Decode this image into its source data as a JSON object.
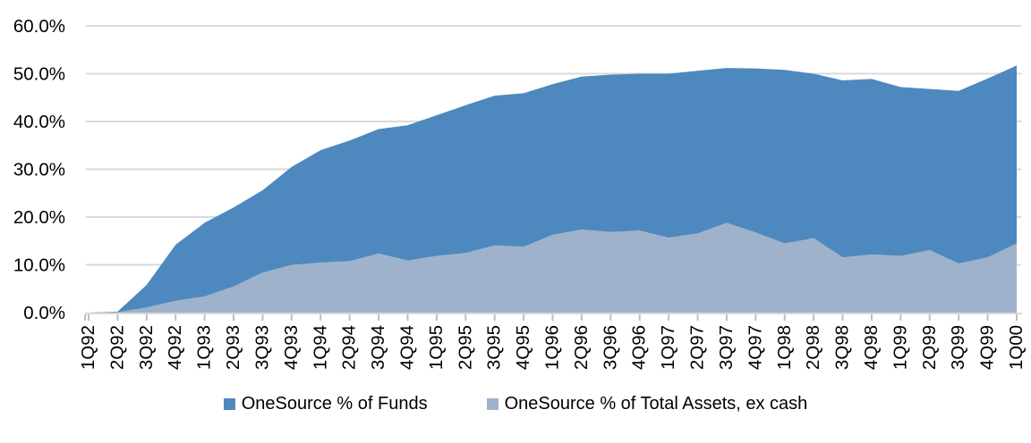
{
  "chart_data": {
    "type": "area",
    "title": "",
    "xlabel": "",
    "ylabel": "",
    "mode": "overlapping",
    "grid": true,
    "legend_position": "bottom",
    "ylim": [
      0,
      60
    ],
    "ytick_labels": [
      "0.0%",
      "10.0%",
      "20.0%",
      "30.0%",
      "40.0%",
      "50.0%",
      "60.0%"
    ],
    "categories": [
      "1Q92",
      "2Q92",
      "3Q92",
      "4Q92",
      "1Q93",
      "2Q93",
      "3Q93",
      "4Q93",
      "1Q94",
      "2Q94",
      "3Q94",
      "4Q94",
      "1Q95",
      "2Q95",
      "3Q95",
      "4Q95",
      "1Q96",
      "2Q96",
      "3Q96",
      "4Q96",
      "1Q97",
      "2Q97",
      "3Q97",
      "4Q97",
      "1Q98",
      "2Q98",
      "3Q98",
      "4Q98",
      "1Q99",
      "2Q99",
      "3Q99",
      "4Q99",
      "1Q00"
    ],
    "series": [
      {
        "name": "OneSource % of Funds",
        "color": "#4D89BE",
        "values": [
          0.0,
          0.2,
          5.8,
          14.2,
          18.8,
          22.0,
          25.6,
          30.5,
          34.0,
          36.0,
          38.4,
          39.2,
          41.3,
          43.4,
          45.4,
          45.9,
          47.8,
          49.4,
          49.8,
          50.0,
          50.0,
          50.6,
          51.2,
          51.1,
          50.8,
          50.0,
          48.6,
          48.9,
          47.2,
          46.8,
          46.4,
          49.0,
          51.7
        ]
      },
      {
        "name": "OneSource % of Total Assets, ex cash",
        "color": "#9FB2CC",
        "values": [
          0.0,
          0.1,
          1.1,
          2.5,
          3.4,
          5.5,
          8.4,
          10.0,
          10.5,
          10.8,
          12.4,
          10.9,
          11.9,
          12.5,
          14.1,
          13.8,
          16.3,
          17.4,
          16.9,
          17.2,
          15.7,
          16.6,
          18.8,
          16.8,
          14.5,
          15.6,
          11.6,
          12.2,
          11.9,
          13.1,
          10.3,
          11.6,
          14.5
        ]
      }
    ]
  },
  "colors": {
    "background": "#FFFFFF",
    "gridline": "#D9D9D9",
    "axis_line": "#D9D9D9",
    "tick_mark": "#BFBFBF",
    "label_text": "#000000"
  }
}
